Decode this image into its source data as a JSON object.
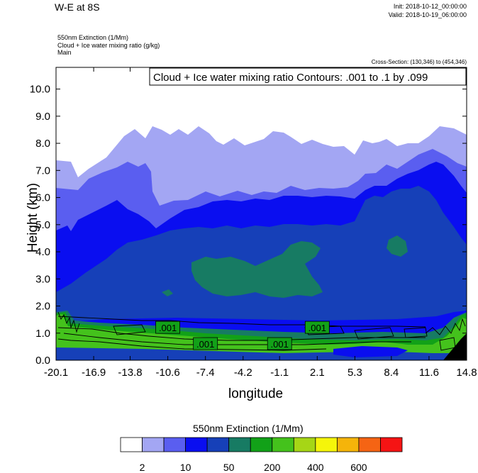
{
  "header": {
    "title": "W-E at 8S",
    "init_label": "Init: 2018-10-12_00:00:00",
    "valid_label": "Valid: 2018-10-19_06:00:00",
    "meta_line1": "550nm Extinction   (1/Mm)",
    "meta_line2": "Cloud + Ice water mixing ratio   (g/kg)",
    "meta_line3": "Main",
    "cross_section": "Cross-Section: (130,346) to (454,346)"
  },
  "chart_data": {
    "type": "heatmap",
    "contour_legend": "Cloud + Ice water mixing ratio Contours: .001 to .1 by .099",
    "xlabel": "longitude",
    "ylabel": "Height (km)",
    "x_ticks": [
      "-20.1",
      "-16.9",
      "-13.8",
      "-10.6",
      "-7.4",
      "-4.2",
      "-1.1",
      "2.1",
      "5.3",
      "8.4",
      "11.6",
      "14.8"
    ],
    "y_ticks": [
      "0.0",
      "1.0",
      "2.0",
      "3.0",
      "4.0",
      "5.0",
      "6.0",
      "7.0",
      "8.0",
      "9.0",
      "10.0"
    ],
    "xlim": [
      -20.1,
      14.8
    ],
    "ylim": [
      0,
      10.8
    ],
    "contour_labels": [
      {
        "text": ".001",
        "x": -10.6,
        "y": 1.2
      },
      {
        "text": ".001",
        "x": -7.4,
        "y": 0.6
      },
      {
        "text": ".001",
        "x": -1.1,
        "y": 0.6
      },
      {
        "text": ".001",
        "x": 2.1,
        "y": 1.2
      }
    ],
    "colorbar": {
      "title": "550nm Extinction  (1/Mm)",
      "colors": [
        "#ffffff",
        "#a3a6f3",
        "#5a5ef0",
        "#0a0ef0",
        "#1640b8",
        "#177b63",
        "#12a118",
        "#44c21c",
        "#a6d616",
        "#f5f50a",
        "#f5b40a",
        "#f56414",
        "#f51414"
      ],
      "tick_labels": [
        "2",
        "10",
        "50",
        "200",
        "400",
        "600"
      ]
    }
  }
}
